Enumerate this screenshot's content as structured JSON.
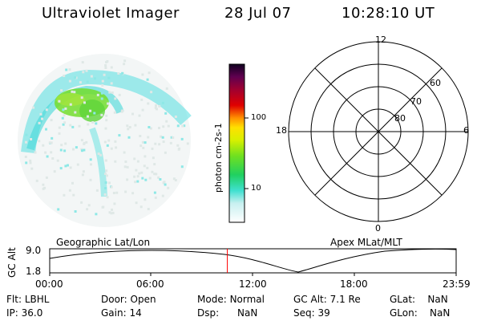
{
  "header": {
    "title": "Ultraviolet Imager",
    "date": "28 Jul 07",
    "time": "10:28:10 UT"
  },
  "colorbar": {
    "unit_label": "photon cm-2s-1",
    "tick_100": "100",
    "tick_10": "10"
  },
  "polar_plot": {
    "labels": {
      "top": "12",
      "bottom": "0",
      "left": "18",
      "right": "6",
      "ring_60": "60",
      "ring_70": "70",
      "ring_80": "80"
    }
  },
  "track": {
    "left_label": "Geographic Lat/Lon",
    "right_label": "Apex MLat/MLT",
    "y_axis_label": "GC Alt",
    "y_ticks": [
      "9.0",
      "1.8"
    ],
    "x_ticks": [
      "00:00",
      "06:00",
      "12:00",
      "18:00",
      "23:59"
    ],
    "current_time_fraction": 0.437
  },
  "info": {
    "row1": [
      {
        "k": "Flt:",
        "v": "LBHL"
      },
      {
        "k": "Door:",
        "v": "Open"
      },
      {
        "k": "Mode:",
        "v": "Normal"
      },
      {
        "k": "GC Alt:",
        "v": "7.1 Re"
      },
      {
        "k": "GLat:",
        "v": "NaN"
      }
    ],
    "row2": [
      {
        "k": "IP:",
        "v": "36.0"
      },
      {
        "k": "Gain:",
        "v": "14"
      },
      {
        "k": "Dsp:",
        "v": "NaN"
      },
      {
        "k": "Seq:",
        "v": "39"
      },
      {
        "k": "GLon:",
        "v": "NaN"
      }
    ]
  },
  "colors": {
    "accent_marker": "#ff0000",
    "aurora_high": "#6fdc2a",
    "aurora_mid": "#35e0d6",
    "background": "#ffffff"
  }
}
